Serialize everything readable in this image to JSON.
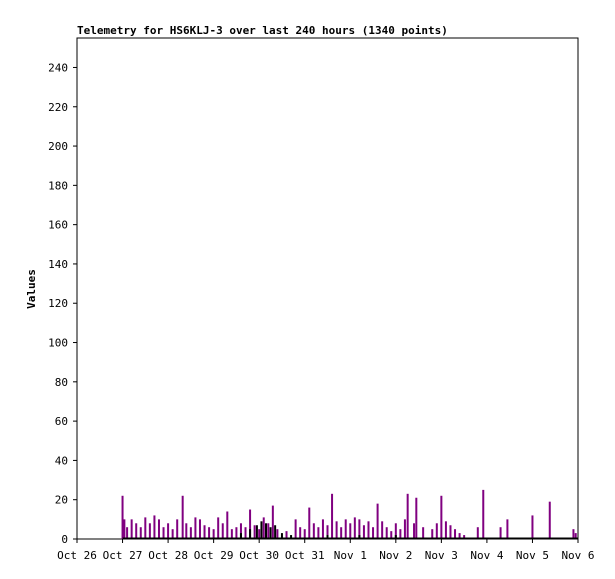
{
  "chart_data": {
    "type": "bar",
    "title": "Telemetry for HS6KLJ-3 over last 240 hours (1340 points)",
    "xlabel": "",
    "ylabel": "Values",
    "ylim": [
      0,
      255
    ],
    "y_ticks": [
      0,
      20,
      40,
      60,
      80,
      100,
      120,
      140,
      160,
      180,
      200,
      220,
      240
    ],
    "x_axis_unit": "days",
    "xlim": [
      0,
      11
    ],
    "x_ticks": [
      {
        "x": 0,
        "label": "Oct 26"
      },
      {
        "x": 1,
        "label": "Oct 27"
      },
      {
        "x": 2,
        "label": "Oct 28"
      },
      {
        "x": 3,
        "label": "Oct 29"
      },
      {
        "x": 4,
        "label": "Oct 30"
      },
      {
        "x": 5,
        "label": "Oct 31"
      },
      {
        "x": 6,
        "label": "Nov 1"
      },
      {
        "x": 7,
        "label": "Nov 2"
      },
      {
        "x": 8,
        "label": "Nov 3"
      },
      {
        "x": 9,
        "label": "Nov 4"
      },
      {
        "x": 10,
        "label": "Nov 5"
      },
      {
        "x": 11,
        "label": "Nov 6"
      }
    ],
    "grid": false,
    "colors": {
      "series_1": "#800080",
      "series_2": "#000000"
    },
    "series": [
      {
        "points": [
          [
            1.0,
            22
          ],
          [
            1.04,
            10
          ],
          [
            1.1,
            6
          ],
          [
            1.2,
            10
          ],
          [
            1.3,
            8
          ],
          [
            1.4,
            6
          ],
          [
            1.5,
            11
          ],
          [
            1.6,
            8
          ],
          [
            1.7,
            12
          ],
          [
            1.8,
            10
          ],
          [
            1.9,
            6
          ],
          [
            2.0,
            8
          ],
          [
            2.1,
            5
          ],
          [
            2.2,
            10
          ],
          [
            2.32,
            22
          ],
          [
            2.4,
            8
          ],
          [
            2.5,
            6
          ],
          [
            2.6,
            11
          ],
          [
            2.7,
            10
          ],
          [
            2.8,
            7
          ],
          [
            2.9,
            6
          ],
          [
            3.0,
            5
          ],
          [
            3.1,
            11
          ],
          [
            3.2,
            8
          ],
          [
            3.3,
            14
          ],
          [
            3.4,
            5
          ],
          [
            3.5,
            6
          ],
          [
            3.6,
            8
          ],
          [
            3.7,
            6
          ],
          [
            3.8,
            15
          ],
          [
            3.9,
            7
          ],
          [
            4.0,
            5
          ],
          [
            4.1,
            11
          ],
          [
            4.2,
            8
          ],
          [
            4.3,
            17
          ],
          [
            4.4,
            5
          ],
          [
            4.6,
            4
          ],
          [
            4.8,
            10
          ],
          [
            4.9,
            6
          ],
          [
            5.0,
            5
          ],
          [
            5.1,
            16
          ],
          [
            5.2,
            8
          ],
          [
            5.3,
            6
          ],
          [
            5.4,
            10
          ],
          [
            5.5,
            7
          ],
          [
            5.6,
            23
          ],
          [
            5.7,
            9
          ],
          [
            5.8,
            6
          ],
          [
            5.9,
            10
          ],
          [
            6.0,
            8
          ],
          [
            6.1,
            11
          ],
          [
            6.2,
            10
          ],
          [
            6.3,
            7
          ],
          [
            6.4,
            9
          ],
          [
            6.5,
            6
          ],
          [
            6.6,
            18
          ],
          [
            6.7,
            9
          ],
          [
            6.8,
            6
          ],
          [
            6.9,
            4
          ],
          [
            7.0,
            8
          ],
          [
            7.1,
            5
          ],
          [
            7.2,
            10
          ],
          [
            7.26,
            23
          ],
          [
            7.4,
            8
          ],
          [
            7.45,
            21
          ],
          [
            7.6,
            6
          ],
          [
            7.8,
            5
          ],
          [
            7.9,
            8
          ],
          [
            8.0,
            22
          ],
          [
            8.1,
            9
          ],
          [
            8.2,
            7
          ],
          [
            8.3,
            5
          ],
          [
            8.4,
            3
          ],
          [
            8.5,
            2
          ],
          [
            8.8,
            6
          ],
          [
            8.92,
            25
          ],
          [
            9.3,
            6
          ],
          [
            9.45,
            10
          ],
          [
            10.0,
            12
          ],
          [
            10.38,
            19
          ],
          [
            10.9,
            5
          ],
          [
            10.95,
            3
          ]
        ]
      },
      {
        "points": [
          [
            3.6,
            3
          ],
          [
            3.8,
            5
          ],
          [
            3.95,
            7
          ],
          [
            4.05,
            9
          ],
          [
            4.15,
            8
          ],
          [
            4.25,
            6
          ],
          [
            4.35,
            7
          ],
          [
            4.5,
            3
          ],
          [
            4.7,
            2
          ],
          [
            5.5,
            2
          ],
          [
            6.2,
            2
          ],
          [
            7.0,
            2
          ]
        ]
      }
    ]
  }
}
